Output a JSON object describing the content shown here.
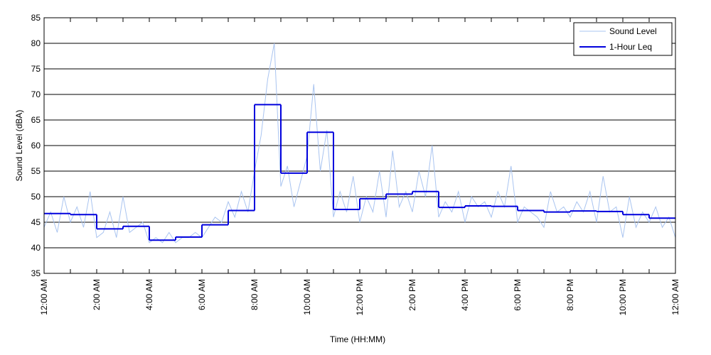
{
  "chart_data": {
    "type": "line",
    "xlabel": "Time (HH:MM)",
    "ylabel": "Sound Level (dBA)",
    "xlim": [
      0,
      24
    ],
    "xticks": [
      {
        "value": 0,
        "label": "12:00 AM"
      },
      {
        "value": 2,
        "label": "2:00 AM"
      },
      {
        "value": 4,
        "label": "4:00 AM"
      },
      {
        "value": 6,
        "label": "6:00 AM"
      },
      {
        "value": 8,
        "label": "8:00 AM"
      },
      {
        "value": 10,
        "label": "10:00 AM"
      },
      {
        "value": 12,
        "label": "12:00 PM"
      },
      {
        "value": 14,
        "label": "2:00 PM"
      },
      {
        "value": 16,
        "label": "4:00 PM"
      },
      {
        "value": 18,
        "label": "6:00 PM"
      },
      {
        "value": 20,
        "label": "8:00 PM"
      },
      {
        "value": 22,
        "label": "10:00 PM"
      },
      {
        "value": 24,
        "label": "12:00 AM"
      }
    ],
    "xminorticks": [
      1,
      3,
      5,
      7,
      9,
      11,
      13,
      15,
      17,
      19,
      21,
      23
    ],
    "ylim": [
      35,
      85
    ],
    "yticks": [
      35,
      40,
      45,
      50,
      55,
      60,
      65,
      70,
      75,
      80,
      85
    ],
    "grid": true,
    "legend": "upper right",
    "series": [
      {
        "name": "Sound Level",
        "color": "#a9c4f0",
        "x": [
          0,
          0.25,
          0.5,
          0.75,
          1,
          1.25,
          1.5,
          1.75,
          2,
          2.25,
          2.5,
          2.75,
          3,
          3.25,
          3.5,
          3.75,
          4,
          4.25,
          4.5,
          4.75,
          5,
          5.25,
          5.5,
          5.75,
          6,
          6.25,
          6.5,
          6.75,
          7,
          7.25,
          7.5,
          7.75,
          8,
          8.25,
          8.5,
          8.75,
          9,
          9.25,
          9.5,
          9.75,
          10,
          10.25,
          10.5,
          10.75,
          11,
          11.25,
          11.5,
          11.75,
          12,
          12.25,
          12.5,
          12.75,
          13,
          13.25,
          13.5,
          13.75,
          14,
          14.25,
          14.5,
          14.75,
          15,
          15.25,
          15.5,
          15.75,
          16,
          16.25,
          16.5,
          16.75,
          17,
          17.25,
          17.5,
          17.75,
          18,
          18.25,
          18.5,
          18.75,
          19,
          19.25,
          19.5,
          19.75,
          20,
          20.25,
          20.5,
          20.75,
          21,
          21.25,
          21.5,
          21.75,
          22,
          22.25,
          22.5,
          22.75,
          23,
          23.25,
          23.5,
          23.75,
          24
        ],
        "values": [
          44,
          47,
          43,
          50,
          45,
          48,
          44,
          51,
          42,
          43,
          47,
          42,
          50,
          43,
          44,
          45,
          41,
          42,
          41,
          43,
          41,
          42,
          42,
          43,
          42,
          44,
          46,
          45,
          49,
          46,
          51,
          47,
          55,
          62,
          73,
          80,
          52,
          56,
          48,
          53,
          58,
          72,
          55,
          63,
          46,
          51,
          47,
          54,
          45,
          50,
          47,
          55,
          46,
          59,
          48,
          51,
          47,
          55,
          50,
          60,
          46,
          49,
          47,
          51,
          45,
          50,
          48,
          49,
          46,
          51,
          48,
          56,
          45,
          48,
          47,
          46,
          44,
          51,
          47,
          48,
          46,
          49,
          47,
          51,
          45,
          54,
          47,
          48,
          42,
          50,
          44,
          47,
          45,
          48,
          44,
          46,
          42
        ]
      },
      {
        "name": "1-Hour Leq",
        "color": "#0000dd",
        "step": true,
        "x": [
          0,
          1,
          2,
          3,
          4,
          5,
          6,
          7,
          8,
          9,
          10,
          11,
          12,
          13,
          14,
          15,
          16,
          17,
          18,
          19,
          20,
          21,
          22,
          23
        ],
        "values": [
          46.7,
          46.5,
          43.7,
          44.2,
          41.5,
          42.1,
          44.5,
          47.3,
          68.0,
          54.6,
          62.6,
          47.5,
          49.6,
          50.5,
          51.0,
          47.9,
          48.2,
          48.1,
          47.3,
          47.0,
          47.2,
          47.1,
          46.5,
          45.8
        ]
      }
    ]
  }
}
